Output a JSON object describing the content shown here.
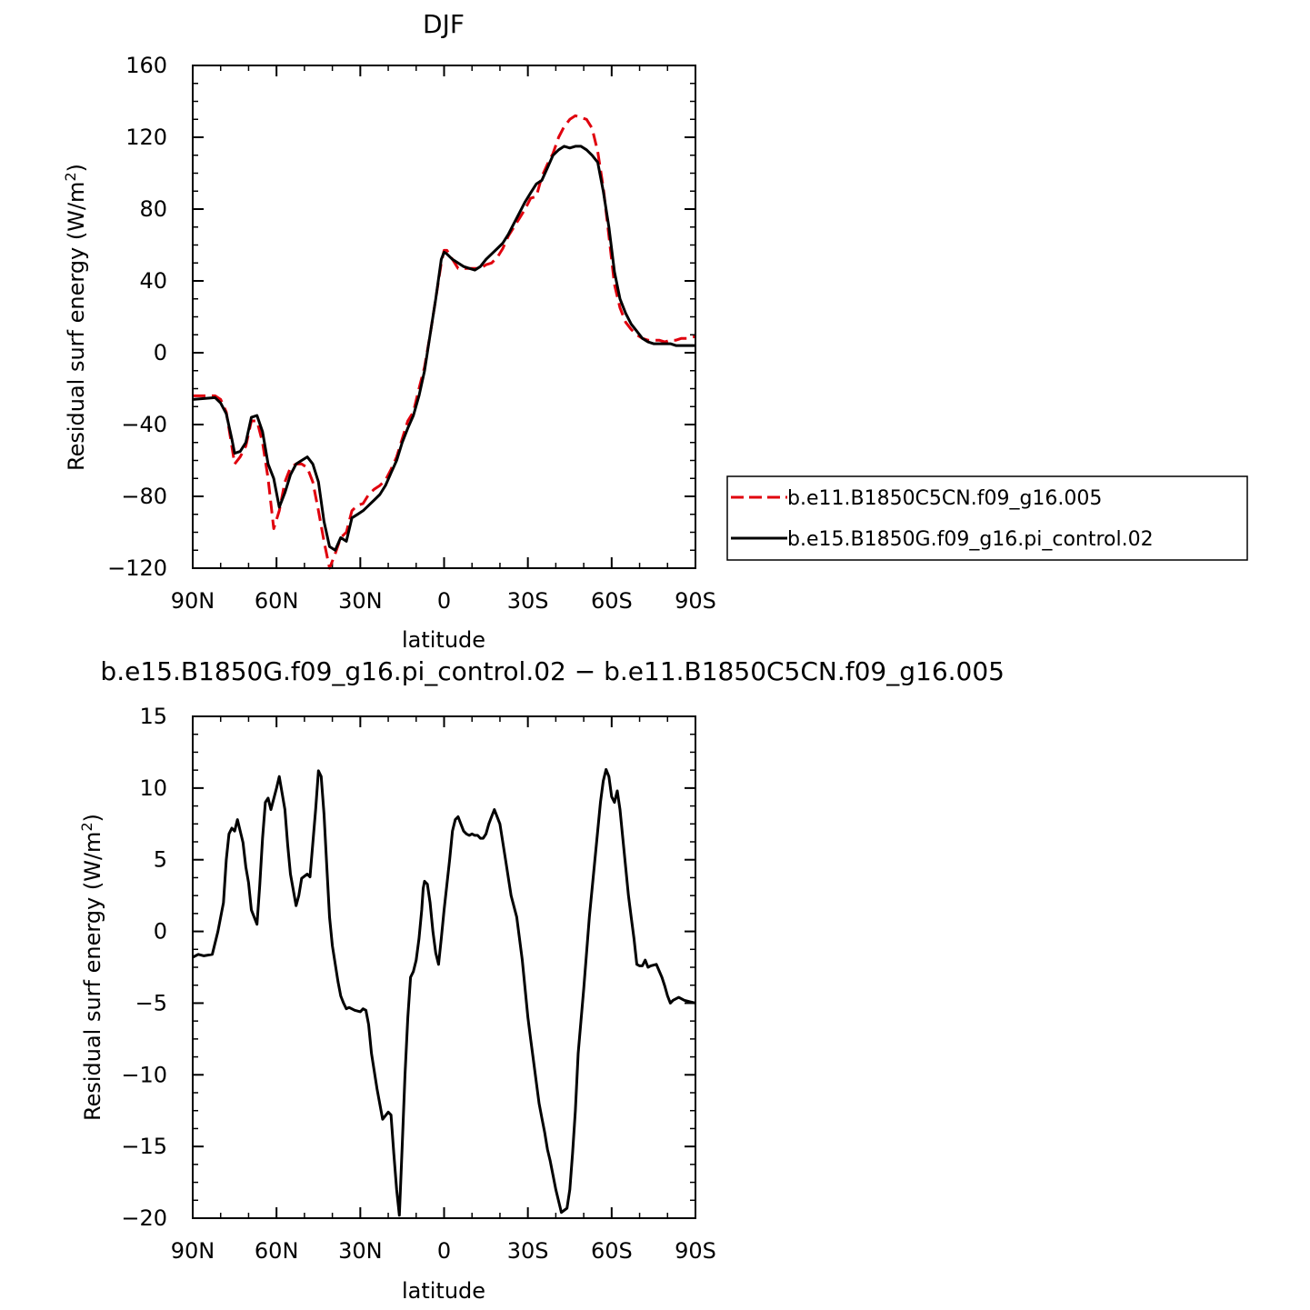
{
  "colors": {
    "case1": "#e0000d",
    "case2": "#000000"
  },
  "chart_data": [
    {
      "type": "line",
      "title": "DJF",
      "xlabel": "latitude",
      "ylabel": "Residual surf energy (W/m",
      "ylabel_sup": "2",
      "ylabel_close": ")",
      "xlim": [
        90,
        -90
      ],
      "ylim": [
        -120,
        160
      ],
      "xtick_values": [
        90,
        60,
        30,
        0,
        -30,
        -60,
        -90
      ],
      "xtick_labels": [
        "90N",
        "60N",
        "30N",
        "0",
        "30S",
        "60S",
        "90S"
      ],
      "ytick_values": [
        -120,
        -80,
        -40,
        0,
        40,
        80,
        120,
        160
      ],
      "ytick_labels": [
        "−120",
        "−80",
        "−40",
        "0",
        "40",
        "80",
        "120",
        "160"
      ],
      "legend": {
        "position": "right"
      },
      "series": [
        {
          "name": "b.e11.B1850C5CN.f09_g16.005",
          "style": "dashed",
          "x": [
            90,
            82,
            80,
            78,
            76,
            75,
            73,
            71,
            69,
            67,
            65,
            63,
            61,
            59,
            57,
            55,
            53,
            51,
            49,
            47,
            45,
            43,
            41,
            39,
            37,
            35,
            33,
            31,
            29,
            27,
            25,
            23,
            21,
            19,
            17,
            15,
            13,
            11,
            9,
            7,
            5,
            3,
            1,
            0,
            -1,
            -3,
            -5,
            -7,
            -9,
            -11,
            -13,
            -15,
            -17,
            -19,
            -21,
            -23,
            -25,
            -27,
            -29,
            -31,
            -33,
            -35,
            -37,
            -39,
            -41,
            -43,
            -45,
            -47,
            -49,
            -51,
            -53,
            -55,
            -57,
            -59,
            -61,
            -63,
            -65,
            -67,
            -69,
            -71,
            -73,
            -75,
            -77,
            -79,
            -81,
            -83,
            -85,
            -87,
            -90
          ],
          "y": [
            -24,
            -24,
            -26,
            -33,
            -52,
            -62,
            -58,
            -52,
            -38,
            -38,
            -50,
            -70,
            -98,
            -88,
            -72,
            -64,
            -62,
            -62,
            -64,
            -72,
            -88,
            -105,
            -120,
            -112,
            -103,
            -100,
            -88,
            -85,
            -84,
            -79,
            -76,
            -74,
            -71,
            -65,
            -58,
            -48,
            -38,
            -33,
            -20,
            -8,
            10,
            30,
            50,
            57,
            57,
            52,
            47,
            47,
            47,
            47,
            47,
            49,
            50,
            53,
            58,
            65,
            70,
            75,
            80,
            86,
            87,
            98,
            105,
            111,
            120,
            126,
            130,
            132,
            131,
            130,
            125,
            112,
            92,
            65,
            38,
            25,
            17,
            13,
            10,
            8,
            7,
            7,
            7,
            6,
            7,
            7,
            8,
            8,
            9
          ]
        },
        {
          "name": "b.e15.B1850G.f09_g16.pi_control.02",
          "style": "solid",
          "x": [
            90,
            82,
            80,
            78,
            76,
            75,
            73,
            71,
            69,
            67,
            65,
            63,
            61,
            59,
            57,
            55,
            53,
            51,
            49,
            47,
            45,
            43,
            41,
            39,
            37,
            35,
            33,
            31,
            29,
            27,
            25,
            23,
            21,
            19,
            17,
            15,
            13,
            11,
            9,
            7,
            5,
            3,
            1,
            0,
            -1,
            -3,
            -5,
            -7,
            -9,
            -11,
            -13,
            -15,
            -17,
            -19,
            -21,
            -23,
            -25,
            -27,
            -29,
            -31,
            -33,
            -35,
            -37,
            -39,
            -41,
            -43,
            -45,
            -47,
            -49,
            -51,
            -53,
            -55,
            -57,
            -59,
            -61,
            -63,
            -65,
            -67,
            -69,
            -71,
            -73,
            -75,
            -77,
            -79,
            -81,
            -83,
            -85,
            -87,
            -90
          ],
          "y": [
            -26,
            -25,
            -28,
            -34,
            -48,
            -56,
            -55,
            -50,
            -36,
            -35,
            -44,
            -62,
            -70,
            -86,
            -78,
            -68,
            -62,
            -60,
            -58,
            -62,
            -72,
            -94,
            -108,
            -110,
            -103,
            -105,
            -92,
            -90,
            -88,
            -85,
            -82,
            -79,
            -74,
            -67,
            -60,
            -50,
            -42,
            -35,
            -24,
            -10,
            10,
            30,
            52,
            56,
            55,
            52,
            50,
            48,
            47,
            46,
            48,
            52,
            55,
            58,
            61,
            66,
            72,
            78,
            84,
            89,
            94,
            96,
            103,
            110,
            113,
            115,
            114,
            115,
            115,
            113,
            110,
            106,
            90,
            70,
            45,
            30,
            22,
            16,
            12,
            8,
            6,
            5,
            5,
            5,
            5,
            4,
            4,
            4,
            4
          ]
        }
      ]
    },
    {
      "type": "line",
      "title": "b.e15.B1850G.f09_g16.pi_control.02 − b.e11.B1850C5CN.f09_g16.005",
      "xlabel": "latitude",
      "ylabel": "Residual surf energy (W/m",
      "ylabel_sup": "2",
      "ylabel_close": ")",
      "xlim": [
        90,
        -90
      ],
      "ylim": [
        -20,
        15
      ],
      "xtick_values": [
        90,
        60,
        30,
        0,
        -30,
        -60,
        -90
      ],
      "xtick_labels": [
        "90N",
        "60N",
        "30N",
        "0",
        "30S",
        "60S",
        "90S"
      ],
      "ytick_values": [
        -20,
        -15,
        -10,
        -5,
        0,
        5,
        10,
        15
      ],
      "ytick_labels": [
        "−20",
        "−15",
        "−10",
        "−5",
        "0",
        "5",
        "10",
        "15"
      ],
      "series": [
        {
          "name": "",
          "style": "solid",
          "x": [
            90,
            88,
            86,
            83,
            81,
            79,
            78,
            77,
            76,
            75,
            74,
            72,
            71,
            70,
            69,
            67,
            66,
            65,
            64,
            63,
            62,
            60,
            59,
            57,
            56,
            55,
            53,
            52,
            51,
            49,
            48,
            46,
            45,
            44,
            43,
            42,
            41,
            40,
            38,
            37,
            36,
            35,
            34,
            32,
            30,
            29,
            28,
            27,
            26,
            24,
            22,
            20,
            19,
            18,
            17,
            16,
            15,
            14,
            13,
            12,
            11,
            10,
            9,
            8,
            7.5,
            7,
            6,
            5,
            4,
            3,
            2,
            1,
            0,
            -2,
            -3,
            -4,
            -5,
            -6,
            -7,
            -8,
            -9,
            -10,
            -11,
            -12,
            -13,
            -14,
            -15,
            -16,
            -17,
            -18,
            -20,
            -22,
            -24,
            -26,
            -28,
            -30,
            -31,
            -32,
            -33,
            -34,
            -35,
            -36,
            -37,
            -38,
            -39,
            -40,
            -42,
            -44,
            -45,
            -46,
            -47,
            -48,
            -50,
            -52,
            -54,
            -56,
            -57,
            -58,
            -59,
            -60,
            -61,
            -62,
            -63,
            -64,
            -65,
            -66,
            -67,
            -68,
            -69,
            -70,
            -71,
            -72,
            -73,
            -74,
            -76,
            -78,
            -79,
            -80,
            -81,
            -82,
            -84,
            -86,
            -88,
            -90
          ],
          "y": [
            -1.8,
            -1.6,
            -1.7,
            -1.6,
            0,
            2,
            5,
            6.8,
            7.2,
            7.0,
            7.8,
            6.2,
            4.5,
            3.4,
            1.5,
            0.5,
            3.2,
            6.5,
            9,
            9.3,
            8.5,
            10,
            10.8,
            8.5,
            6,
            4,
            1.8,
            2.5,
            3.7,
            4.0,
            3.8,
            8.5,
            11.2,
            10.8,
            8.2,
            4.5,
            1.0,
            -1.0,
            -3.5,
            -4.5,
            -5.0,
            -5.4,
            -5.3,
            -5.5,
            -5.6,
            -5.4,
            -5.5,
            -6.5,
            -8.5,
            -11,
            -13.1,
            -12.6,
            -12.8,
            -15.5,
            -18.0,
            -19.8,
            -15,
            -10,
            -6,
            -3.2,
            -2.8,
            -2,
            -0.5,
            1.5,
            3.0,
            3.5,
            3.3,
            2.0,
            0,
            -1.5,
            -2.3,
            -0.5,
            1.5,
            5,
            7,
            7.8,
            8.0,
            7.5,
            7,
            6.8,
            6.7,
            6.8,
            6.7,
            6.7,
            6.5,
            6.5,
            6.8,
            7.5,
            8.0,
            8.5,
            7.5,
            5,
            2.5,
            1,
            -2,
            -6,
            -7.5,
            -9,
            -10.5,
            -12,
            -13,
            -14,
            -15.2,
            -16,
            -17,
            -18,
            -19.6,
            -19.3,
            -18,
            -15.5,
            -12.5,
            -8.5,
            -4,
            1,
            5,
            9,
            10.5,
            11.3,
            10.8,
            9.4,
            9.0,
            9.8,
            8.5,
            6.5,
            4.5,
            2.5,
            1,
            -0.5,
            -2.3,
            -2.4,
            -2.4,
            -2.0,
            -2.5,
            -2.4,
            -2.3,
            -3.2,
            -3.8,
            -4.5,
            -5.0,
            -4.8,
            -4.6,
            -4.8,
            -4.9,
            -5.0
          ]
        }
      ]
    }
  ]
}
